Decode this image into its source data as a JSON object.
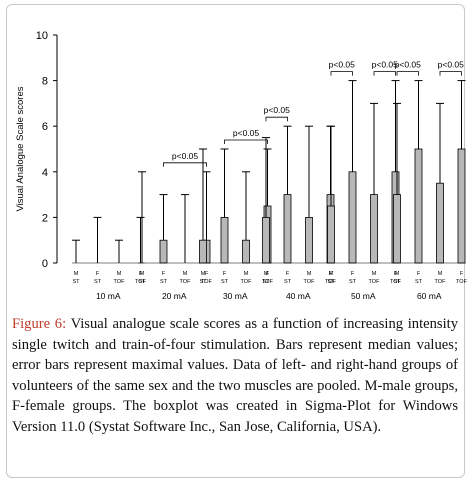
{
  "chart_data": {
    "type": "bar",
    "title": "",
    "ylabel": "Visual Analogue Scale scores",
    "xlabel": "",
    "ylim": [
      0,
      10
    ],
    "yticks": [
      "0",
      "2",
      "4",
      "6",
      "8",
      "10"
    ],
    "grid": false,
    "bar_color": "#b8b8b8",
    "sub_labels": [
      [
        "M",
        "ST"
      ],
      [
        "F",
        "ST"
      ],
      [
        "M",
        "TOF"
      ],
      [
        "F",
        "TOF"
      ]
    ],
    "groups": [
      {
        "label": "10 mA",
        "median": [
          0,
          0,
          0,
          0
        ],
        "max": [
          1,
          2,
          1,
          2
        ],
        "annotations": []
      },
      {
        "label": "20 mA",
        "median": [
          0,
          1,
          0,
          1
        ],
        "max": [
          4,
          3,
          3,
          4
        ],
        "annotations": [
          {
            "text": "p<0.05",
            "pair": [
              1,
              3
            ]
          }
        ]
      },
      {
        "label": "30 mA",
        "median": [
          1,
          2,
          1,
          2.5
        ],
        "max": [
          5,
          5,
          4,
          5
        ],
        "annotations": [
          {
            "text": "p<0.05",
            "pair": [
              1,
              3
            ]
          }
        ]
      },
      {
        "label": "40 mA",
        "median": [
          2,
          3,
          2,
          3
        ],
        "max": [
          5.5,
          6,
          6,
          6
        ],
        "annotations": [
          {
            "text": "p<0.05",
            "pair": [
              0,
              1
            ]
          }
        ]
      },
      {
        "label": "50 mA",
        "median": [
          2.5,
          4,
          3,
          4
        ],
        "max": [
          6,
          8,
          7,
          8
        ],
        "annotations": [
          {
            "text": "p<0.05",
            "pair": [
              0,
              1
            ]
          },
          {
            "text": "p<0.05",
            "pair": [
              2,
              3
            ]
          }
        ]
      },
      {
        "label": "60 mA",
        "median": [
          3,
          5,
          3.5,
          5
        ],
        "max": [
          7,
          8,
          7,
          8
        ],
        "annotations": [
          {
            "text": "p<0.05",
            "pair": [
              0,
              1
            ]
          },
          {
            "text": "p<0.05",
            "pair": [
              2,
              3
            ]
          }
        ]
      }
    ]
  },
  "caption": {
    "label": "Figure 6:",
    "text": "Visual analogue scale scores as a function of increasing intensity single twitch and train-of-four stimulation. Bars represent median values; error bars represent maximal values. Data of left- and right-hand groups of volunteers of the same sex and the two muscles are pooled. M-male groups, F-female groups. The boxplot was created in Sigma-Plot for Windows Version 11.0 (Systat Software Inc., San Jose, California, USA)."
  }
}
